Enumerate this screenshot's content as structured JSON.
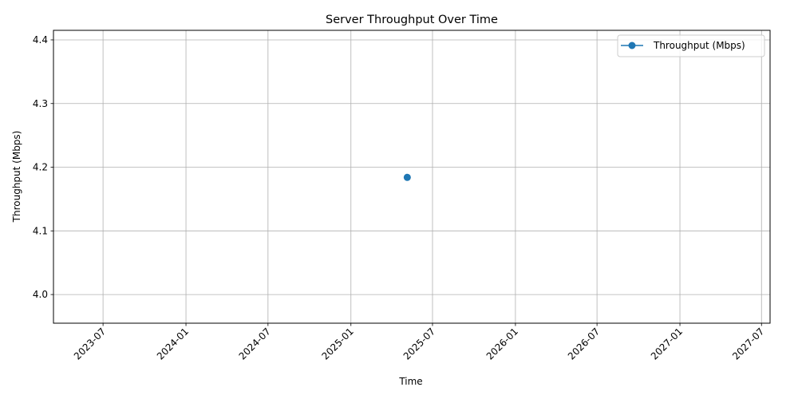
{
  "chart_data": {
    "type": "line",
    "title": "Server Throughput Over Time",
    "xlabel": "Time",
    "ylabel": "Throughput (Mbps)",
    "x_tick_labels": [
      "2023-07",
      "2024-01",
      "2024-07",
      "2025-01",
      "2025-07",
      "2026-01",
      "2026-07",
      "2027-01",
      "2027-07"
    ],
    "y_tick_labels": [
      "4.0",
      "4.1",
      "4.2",
      "4.3",
      "4.4"
    ],
    "y_ticks": [
      4.0,
      4.1,
      4.2,
      4.3,
      4.4
    ],
    "xlim": [
      "2023-03-13",
      "2027-07-20"
    ],
    "ylim": [
      3.955,
      4.415
    ],
    "grid": true,
    "legend_position": "top-right",
    "series": [
      {
        "name": "Throughput (Mbps)",
        "color": "#1f77b4",
        "marker": "circle",
        "points": [
          {
            "x": "2025-05-06",
            "y": 4.184
          }
        ]
      }
    ]
  }
}
